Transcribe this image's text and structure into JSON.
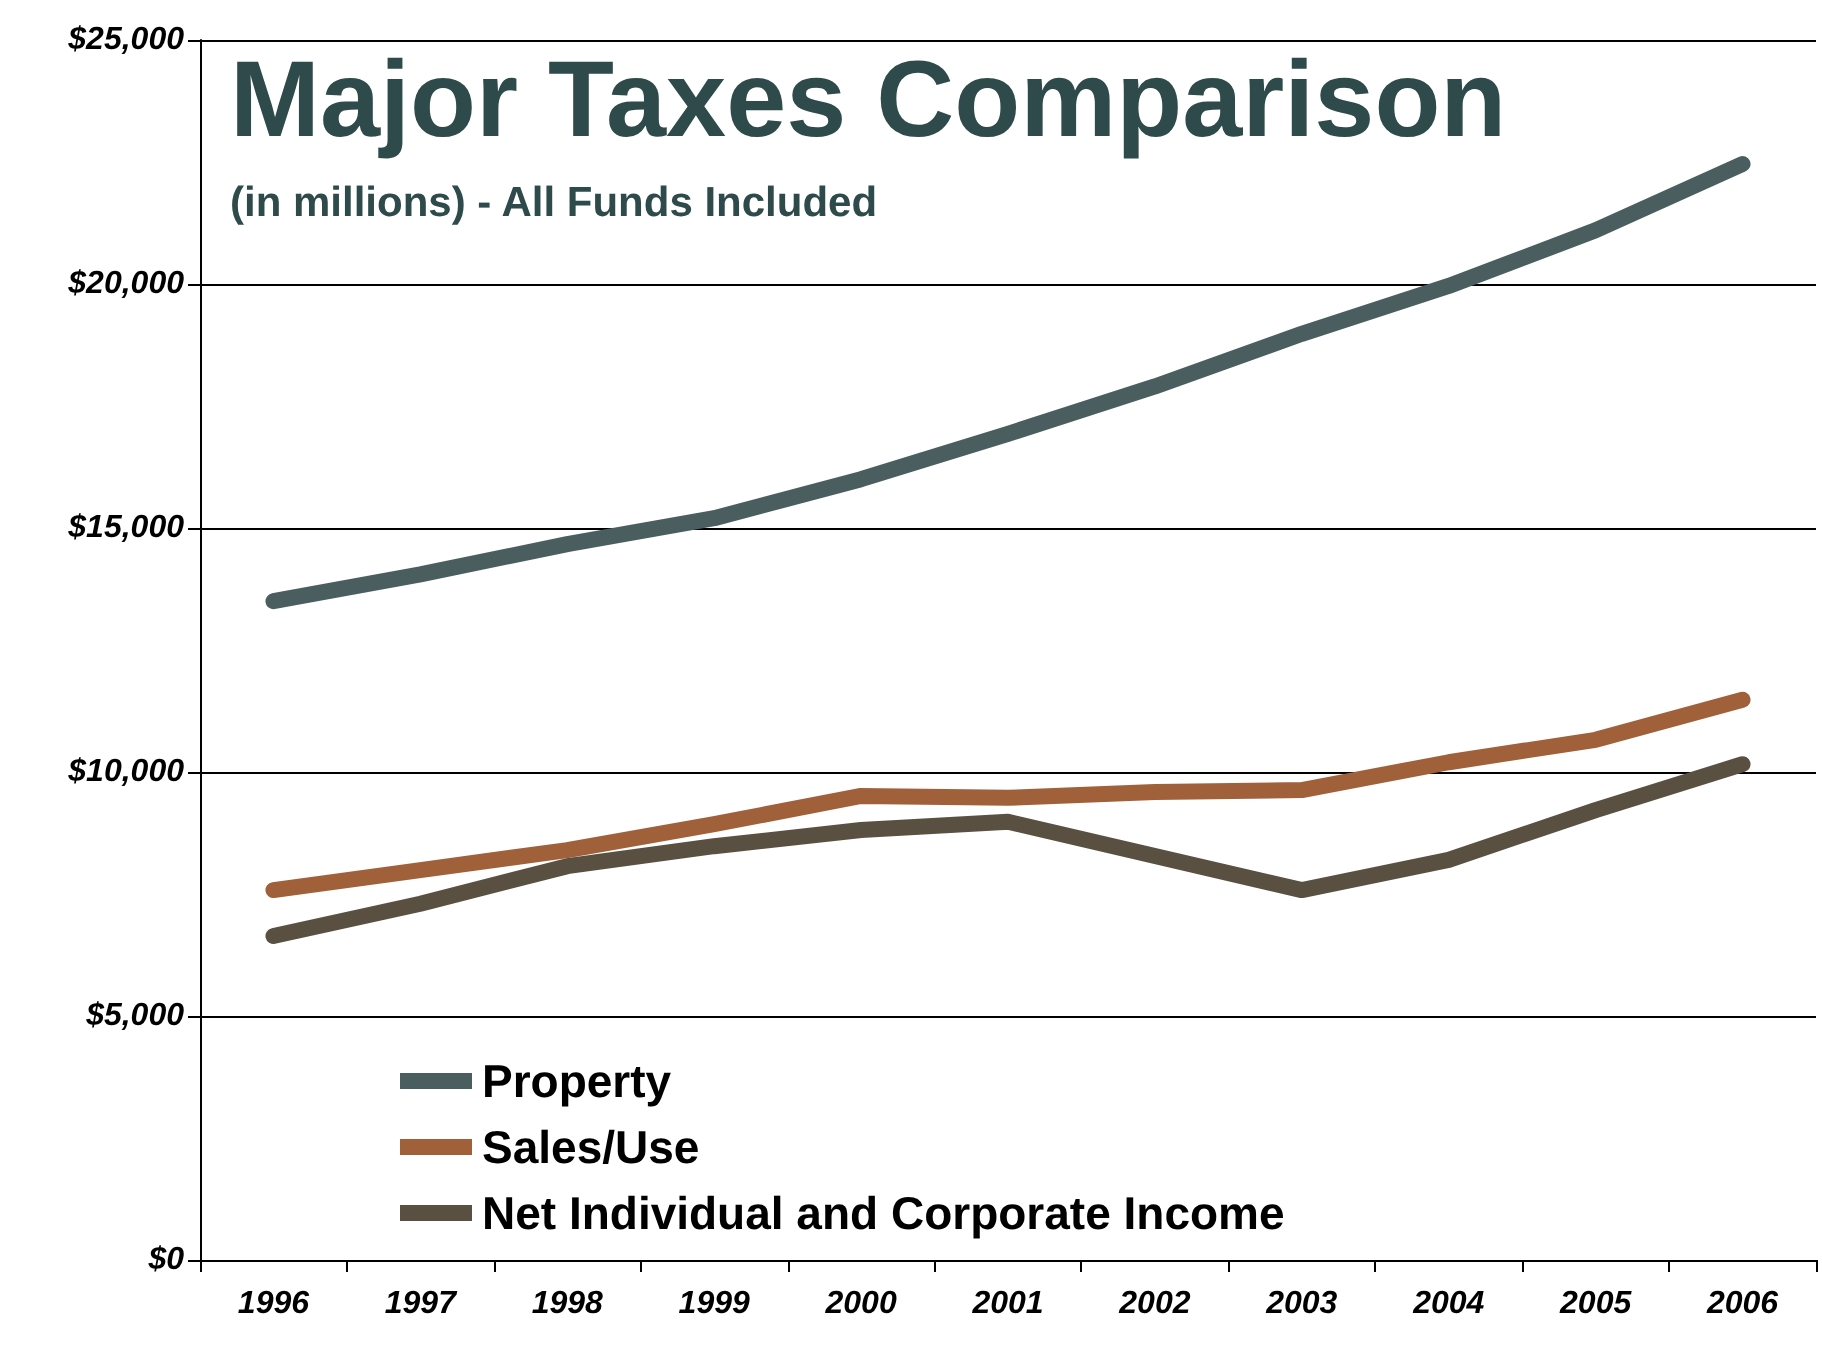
{
  "chart_data": {
    "type": "line",
    "title": "Major Taxes Comparison",
    "subtitle": "(in millions) - All Funds Included",
    "categories": [
      "1996",
      "1997",
      "1998",
      "1999",
      "2000",
      "2001",
      "2002",
      "2003",
      "2004",
      "2005",
      "2006"
    ],
    "series": [
      {
        "name": "Property",
        "color": "#4a5e60",
        "values": [
          13500,
          14050,
          14670,
          15200,
          16000,
          16930,
          17900,
          18980,
          19960,
          21100,
          22460
        ]
      },
      {
        "name": "Sales/Use",
        "color": "#a0603a",
        "values": [
          7580,
          7990,
          8400,
          8930,
          9510,
          9470,
          9590,
          9630,
          10200,
          10660,
          11480
        ]
      },
      {
        "name": "Net Individual and Corporate Income",
        "color": "#5a5042",
        "values": [
          6640,
          7300,
          8070,
          8480,
          8810,
          8980,
          8280,
          7580,
          8200,
          9220,
          10160
        ]
      }
    ],
    "ylim": [
      0,
      25000
    ],
    "yticks": [
      {
        "value": 0,
        "label": "$0"
      },
      {
        "value": 5000,
        "label": "$5,000"
      },
      {
        "value": 10000,
        "label": "$10,000"
      },
      {
        "value": 15000,
        "label": "$15,000"
      },
      {
        "value": 20000,
        "label": "$20,000"
      },
      {
        "value": 25000,
        "label": "$25,000"
      }
    ],
    "grid": "y",
    "legend": "bottom left",
    "marker": "none",
    "line_style": "solid"
  }
}
